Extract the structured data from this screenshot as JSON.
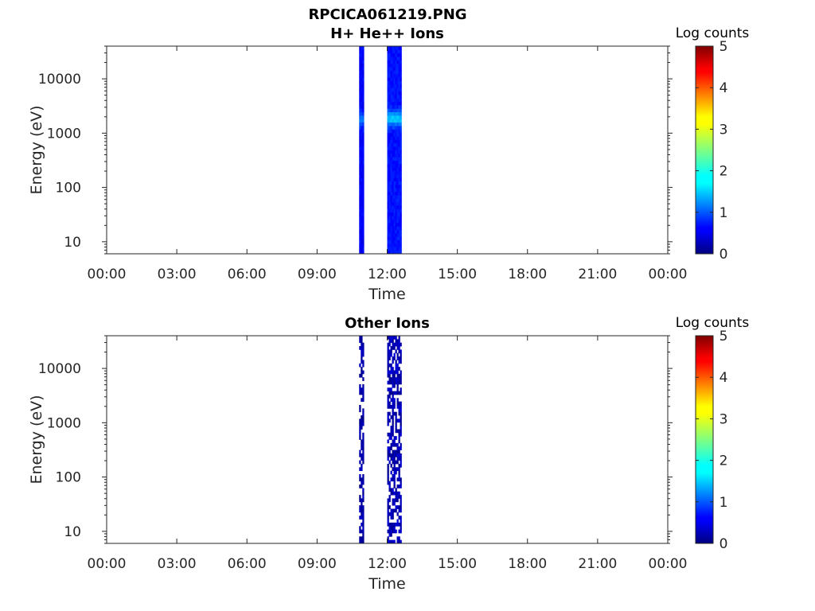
{
  "figure_title": "RPCICA061219.PNG",
  "chart_data": [
    {
      "type": "heatmap",
      "title": "H+ He++ Ions",
      "xlabel": "Time",
      "ylabel": "Energy (eV)",
      "x_ticks": [
        "00:00",
        "03:00",
        "06:00",
        "09:00",
        "12:00",
        "15:00",
        "18:00",
        "21:00",
        "00:00"
      ],
      "x_tick_hours": [
        0,
        3,
        6,
        9,
        12,
        15,
        18,
        21,
        24
      ],
      "xlim_hours": [
        0,
        24
      ],
      "y_scale": "log",
      "ylim": [
        6,
        40000
      ],
      "y_ticks": [
        "10",
        "100",
        "1000",
        "10000"
      ],
      "y_tick_values": [
        10,
        100,
        1000,
        10000
      ],
      "colorbar": {
        "label": "Log counts",
        "range": [
          0,
          5
        ],
        "ticks": [
          "0",
          "1",
          "2",
          "3",
          "4",
          "5"
        ],
        "colormap": "jet"
      },
      "data_intervals": [
        {
          "start_hour": 10.8,
          "end_hour": 10.95,
          "level": 0.6,
          "peak_energy": 1800,
          "peak_level": 1.2
        },
        {
          "start_hour": 12.0,
          "end_hour": 12.6,
          "level": 0.7,
          "peak_energy": 1900,
          "peak_level": 1.6
        }
      ],
      "pattern": "solid"
    },
    {
      "type": "heatmap",
      "title": "Other Ions",
      "xlabel": "Time",
      "ylabel": "Energy (eV)",
      "x_ticks": [
        "00:00",
        "03:00",
        "06:00",
        "09:00",
        "12:00",
        "15:00",
        "18:00",
        "21:00",
        "00:00"
      ],
      "x_tick_hours": [
        0,
        3,
        6,
        9,
        12,
        15,
        18,
        21,
        24
      ],
      "xlim_hours": [
        0,
        24
      ],
      "y_scale": "log",
      "ylim": [
        6,
        40000
      ],
      "y_ticks": [
        "10",
        "100",
        "1000",
        "10000"
      ],
      "y_tick_values": [
        10,
        100,
        1000,
        10000
      ],
      "colorbar": {
        "label": "Log counts",
        "range": [
          0,
          5
        ],
        "ticks": [
          "0",
          "1",
          "2",
          "3",
          "4",
          "5"
        ],
        "colormap": "jet"
      },
      "data_intervals": [
        {
          "start_hour": 10.8,
          "end_hour": 10.95,
          "level": 0.3
        },
        {
          "start_hour": 12.0,
          "end_hour": 12.6,
          "level": 0.4
        }
      ],
      "pattern": "speckled"
    }
  ]
}
